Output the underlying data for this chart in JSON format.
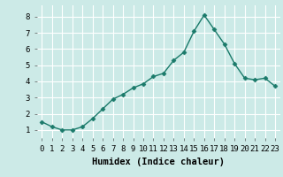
{
  "x": [
    0,
    1,
    2,
    3,
    4,
    5,
    6,
    7,
    8,
    9,
    10,
    11,
    12,
    13,
    14,
    15,
    16,
    17,
    18,
    19,
    20,
    21,
    22,
    23
  ],
  "y": [
    1.5,
    1.2,
    1.0,
    1.0,
    1.2,
    1.7,
    2.3,
    2.9,
    3.2,
    3.6,
    3.85,
    4.3,
    4.5,
    5.3,
    5.8,
    7.1,
    8.1,
    7.2,
    6.3,
    5.1,
    4.2,
    4.1,
    4.2,
    3.7
  ],
  "line_color": "#1a7a6a",
  "marker": "D",
  "marker_size": 2.5,
  "bg_color": "#cceae7",
  "grid_color": "#ffffff",
  "xlabel": "Humidex (Indice chaleur)",
  "ylim": [
    0.5,
    8.7
  ],
  "xlim": [
    -0.5,
    23.5
  ],
  "yticks": [
    1,
    2,
    3,
    4,
    5,
    6,
    7,
    8
  ],
  "xticks": [
    0,
    1,
    2,
    3,
    4,
    5,
    6,
    7,
    8,
    9,
    10,
    11,
    12,
    13,
    14,
    15,
    16,
    17,
    18,
    19,
    20,
    21,
    22,
    23
  ],
  "xlabel_fontsize": 7.5,
  "tick_fontsize": 6.5,
  "linewidth": 1.0
}
